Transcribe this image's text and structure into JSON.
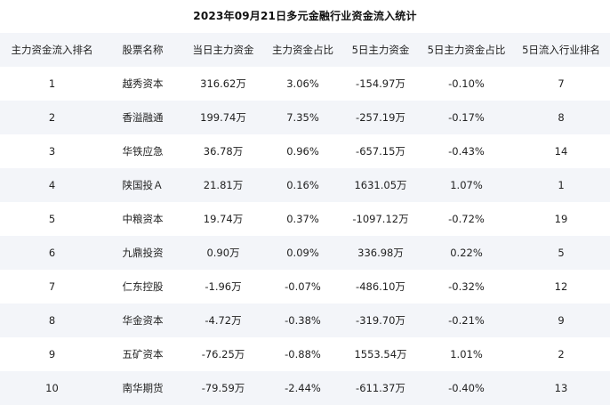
{
  "title": "2023年09月21日多元金融行业资金流入统计",
  "columns": [
    "主力资金流入排名",
    "股票名称",
    "当日主力资金",
    "主力资金占比",
    "5日主力资金",
    "5日主力资金占比",
    "5日流入行业排名"
  ],
  "rows": [
    [
      "1",
      "越秀资本",
      "316.62万",
      "3.06%",
      "-154.97万",
      "-0.10%",
      "7"
    ],
    [
      "2",
      "香溢融通",
      "199.74万",
      "7.35%",
      "-257.19万",
      "-0.17%",
      "8"
    ],
    [
      "3",
      "华铁应急",
      "36.78万",
      "0.96%",
      "-657.15万",
      "-0.43%",
      "14"
    ],
    [
      "4",
      "陕国投Ａ",
      "21.81万",
      "0.16%",
      "1631.05万",
      "1.07%",
      "1"
    ],
    [
      "5",
      "中粮资本",
      "19.74万",
      "0.37%",
      "-1097.12万",
      "-0.72%",
      "19"
    ],
    [
      "6",
      "九鼎投资",
      "0.90万",
      "0.09%",
      "336.98万",
      "0.22%",
      "5"
    ],
    [
      "7",
      "仁东控股",
      "-1.96万",
      "-0.07%",
      "-486.10万",
      "-0.32%",
      "12"
    ],
    [
      "8",
      "华金资本",
      "-4.72万",
      "-0.38%",
      "-319.70万",
      "-0.21%",
      "9"
    ],
    [
      "9",
      "五矿资本",
      "-76.25万",
      "-0.88%",
      "1553.54万",
      "1.01%",
      "2"
    ],
    [
      "10",
      "南华期货",
      "-79.59万",
      "-2.44%",
      "-611.37万",
      "-0.40%",
      "13"
    ]
  ]
}
